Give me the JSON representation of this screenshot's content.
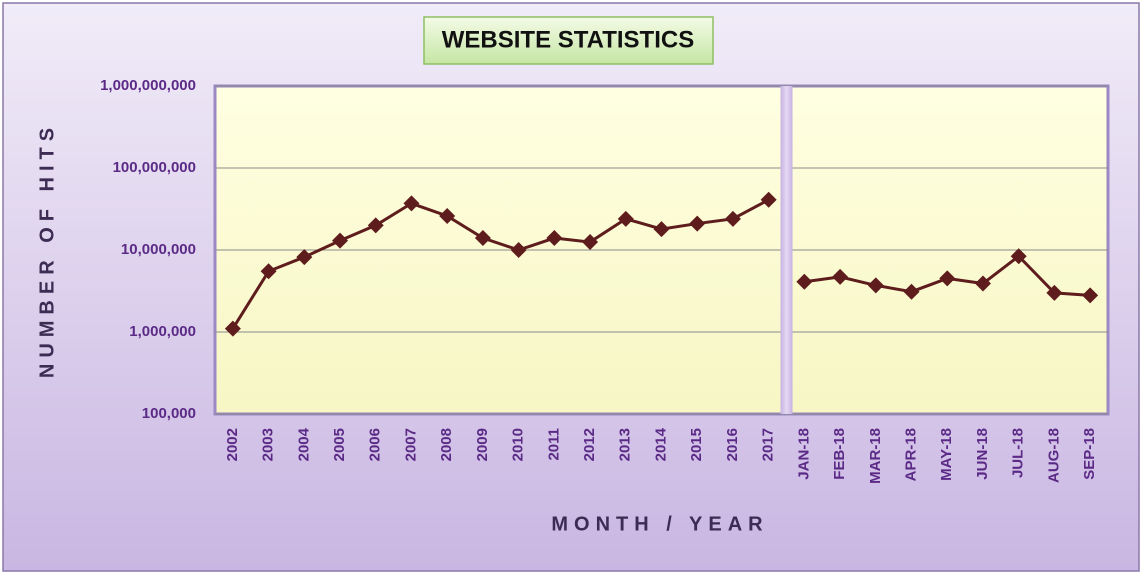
{
  "chart_data": {
    "type": "line",
    "title": "WEBSITE STATISTICS",
    "x_label": "MONTH / YEAR",
    "y_label": "NUMBER OF HITS",
    "categories": [
      "2002",
      "2003",
      "2004",
      "2005",
      "2006",
      "2007",
      "2008",
      "2009",
      "2010",
      "2011",
      "2012",
      "2013",
      "2014",
      "2015",
      "2016",
      "2017",
      "JAN-18",
      "FEB-18",
      "MAR-18",
      "APR-18",
      "MAY-18",
      "JUN-18",
      "JUL-18",
      "AUG-18",
      "SEP-18"
    ],
    "series": [
      {
        "color": "#5e1c1c",
        "values": [
          1100000,
          5500000,
          8200000,
          13000000,
          20000000,
          37000000,
          26000000,
          14000000,
          10000000,
          14000000,
          12500000,
          24000000,
          18000000,
          21000000,
          24000000,
          41000000,
          null,
          null,
          null,
          null,
          null,
          null,
          null,
          null,
          null
        ]
      },
      {
        "color": "#5e1c1c",
        "values": [
          null,
          null,
          null,
          null,
          null,
          null,
          null,
          null,
          null,
          null,
          null,
          null,
          null,
          null,
          null,
          null,
          4100000,
          4700000,
          3700000,
          3100000,
          4500000,
          3900000,
          8400000,
          3000000,
          2800000
        ]
      }
    ],
    "y_scale": "log",
    "grid": true,
    "ylim": [
      100000,
      1000000000
    ],
    "yticks": [
      {
        "value": 100000,
        "label": "100,000"
      },
      {
        "value": 1000000,
        "label": "1,000,000"
      },
      {
        "value": 10000000,
        "label": "10,000,000"
      },
      {
        "value": 100000000,
        "label": "100,000,000"
      },
      {
        "value": 1000000000,
        "label": "1,000,000,000"
      }
    ]
  }
}
